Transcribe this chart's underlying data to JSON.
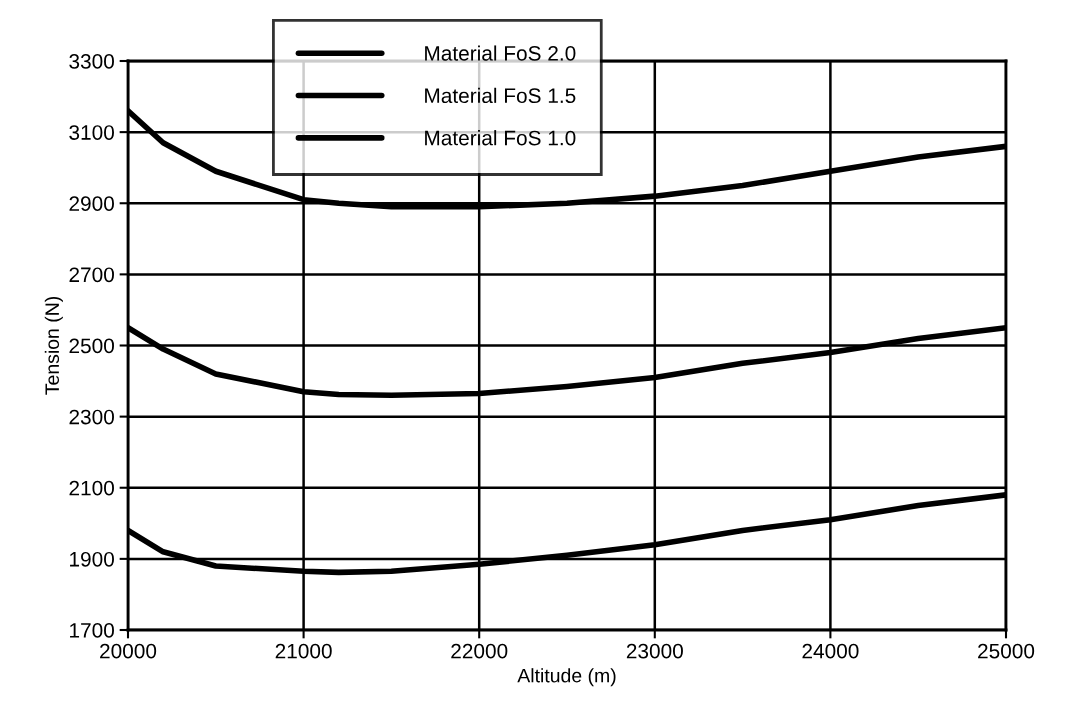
{
  "chart_data": {
    "type": "line",
    "xlabel": "Altitude (m)",
    "ylabel": "Tension (N)",
    "xlim": [
      20000,
      25000
    ],
    "xticks": [
      20000,
      21000,
      22000,
      23000,
      24000,
      25000
    ],
    "ylim": [
      1700,
      3300
    ],
    "yticks": [
      1700,
      1900,
      2100,
      2300,
      2500,
      2700,
      2900,
      3100,
      3300
    ],
    "grid": true,
    "legend": "top",
    "marker": "none",
    "line_style": "solid",
    "x": [
      20000,
      20200,
      20500,
      21000,
      21200,
      21500,
      22000,
      22500,
      23000,
      23500,
      24000,
      24500,
      25000
    ],
    "series": [
      {
        "name": "Material FoS 2.0",
        "color": "#000000",
        "values": [
          3160,
          3070,
          2990,
          2910,
          2900,
          2890,
          2890,
          2900,
          2920,
          2950,
          2990,
          3030,
          3060
        ]
      },
      {
        "name": "Material FoS 1.5",
        "color": "#000000",
        "values": [
          2550,
          2490,
          2420,
          2370,
          2362,
          2360,
          2365,
          2385,
          2410,
          2450,
          2480,
          2520,
          2550
        ]
      },
      {
        "name": "Material FoS 1.0",
        "color": "#000000",
        "values": [
          1980,
          1920,
          1880,
          1865,
          1862,
          1865,
          1885,
          1910,
          1940,
          1980,
          2010,
          2050,
          2080
        ]
      }
    ]
  }
}
